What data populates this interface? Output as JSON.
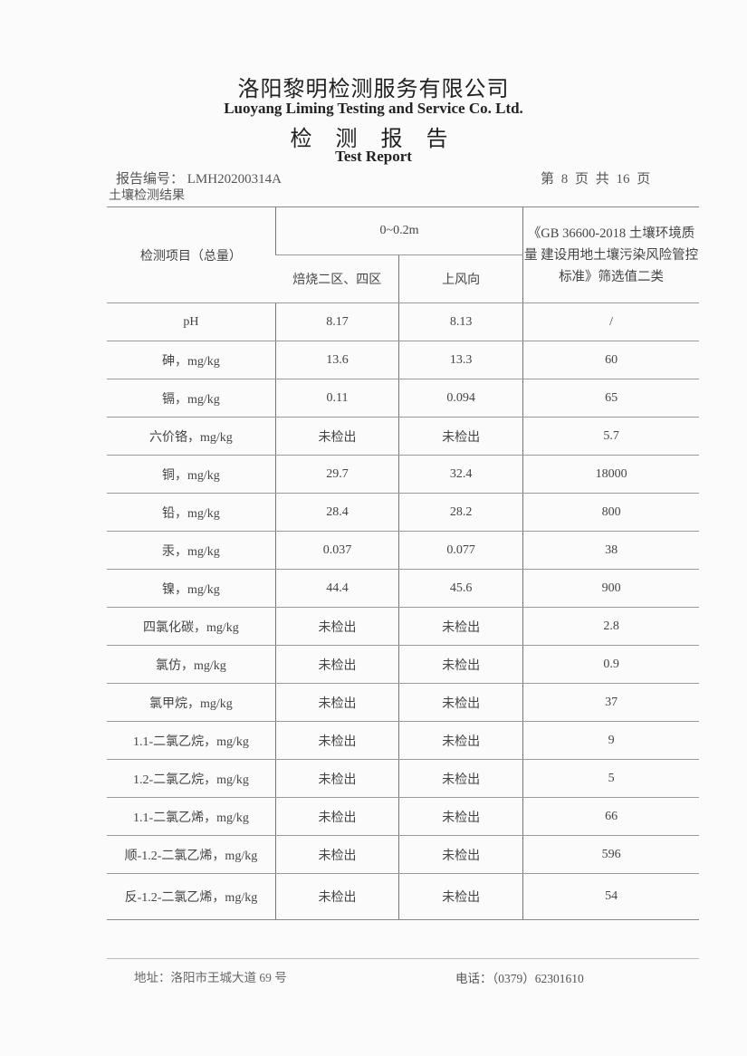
{
  "header": {
    "company_cn": "洛阳黎明检测服务有限公司",
    "company_en": "Luoyang Liming Testing and Service Co. Ltd.",
    "title_cn": "检 测 报 告",
    "title_en": "Test Report",
    "report_no": "报告编号： LMH20200314A",
    "page": "第 8 页 共 16 页",
    "section": "土壤检测结果"
  },
  "table": {
    "col_item": "检测项目（总量）",
    "col_depth": "0~0.2m",
    "col_site1": "焙烧二区、四区",
    "col_site2": "上风向",
    "col_std": "《GB 36600-2018 土壤环境质量 建设用地土壤污染风险管控标准》筛选值二类",
    "rows": [
      [
        "pH",
        "8.17",
        "8.13",
        "/"
      ],
      [
        "砷，mg/kg",
        "13.6",
        "13.3",
        "60"
      ],
      [
        "镉，mg/kg",
        "0.11",
        "0.094",
        "65"
      ],
      [
        "六价铬，mg/kg",
        "未检出",
        "未检出",
        "5.7"
      ],
      [
        "铜，mg/kg",
        "29.7",
        "32.4",
        "18000"
      ],
      [
        "铅，mg/kg",
        "28.4",
        "28.2",
        "800"
      ],
      [
        "汞，mg/kg",
        "0.037",
        "0.077",
        "38"
      ],
      [
        "镍，mg/kg",
        "44.4",
        "45.6",
        "900"
      ],
      [
        "四氯化碳，mg/kg",
        "未检出",
        "未检出",
        "2.8"
      ],
      [
        "氯仿，mg/kg",
        "未检出",
        "未检出",
        "0.9"
      ],
      [
        "氯甲烷，mg/kg",
        "未检出",
        "未检出",
        "37"
      ],
      [
        "1.1-二氯乙烷，mg/kg",
        "未检出",
        "未检出",
        "9"
      ],
      [
        "1.2-二氯乙烷，mg/kg",
        "未检出",
        "未检出",
        "5"
      ],
      [
        "1.1-二氯乙烯，mg/kg",
        "未检出",
        "未检出",
        "66"
      ],
      [
        "顺-1.2-二氯乙烯，mg/kg",
        "未检出",
        "未检出",
        "596"
      ],
      [
        "反-1.2-二氯乙烯，mg/kg",
        "未检出",
        "未检出",
        "54"
      ]
    ]
  },
  "footer": {
    "address": "地址：洛阳市王城大道 69 号",
    "phone": "电话：（0379）62301610"
  }
}
